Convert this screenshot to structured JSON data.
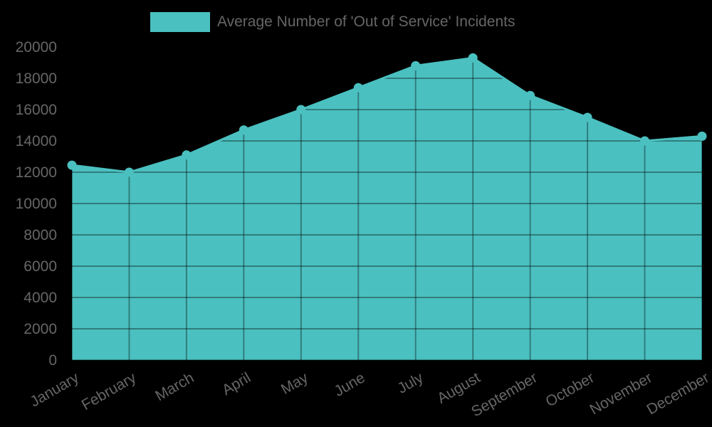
{
  "legend": {
    "label": "Average Number of 'Out of Service' Incidents",
    "color": "#4bc0c0"
  },
  "colors": {
    "fill": "#4bc0c0",
    "line": "#4bc0c0",
    "grid": "rgba(0,0,0,0.35)",
    "text": "#666666",
    "background": "#000000"
  },
  "chart_data": {
    "type": "area",
    "title": "",
    "xlabel": "",
    "ylabel": "",
    "categories": [
      "January",
      "February",
      "March",
      "April",
      "May",
      "June",
      "July",
      "August",
      "September",
      "October",
      "November",
      "December"
    ],
    "series": [
      {
        "name": "Average Number of 'Out of Service' Incidents",
        "values": [
          12450,
          12000,
          13100,
          14700,
          16000,
          17400,
          18800,
          19300,
          16900,
          15500,
          14000,
          14300
        ]
      }
    ],
    "ylim": [
      0,
      20000
    ],
    "yticks": [
      "0",
      "2000",
      "4000",
      "6000",
      "8000",
      "10000",
      "12000",
      "14000",
      "16000",
      "18000",
      "20000"
    ],
    "grid": true,
    "legend_position": "top"
  }
}
